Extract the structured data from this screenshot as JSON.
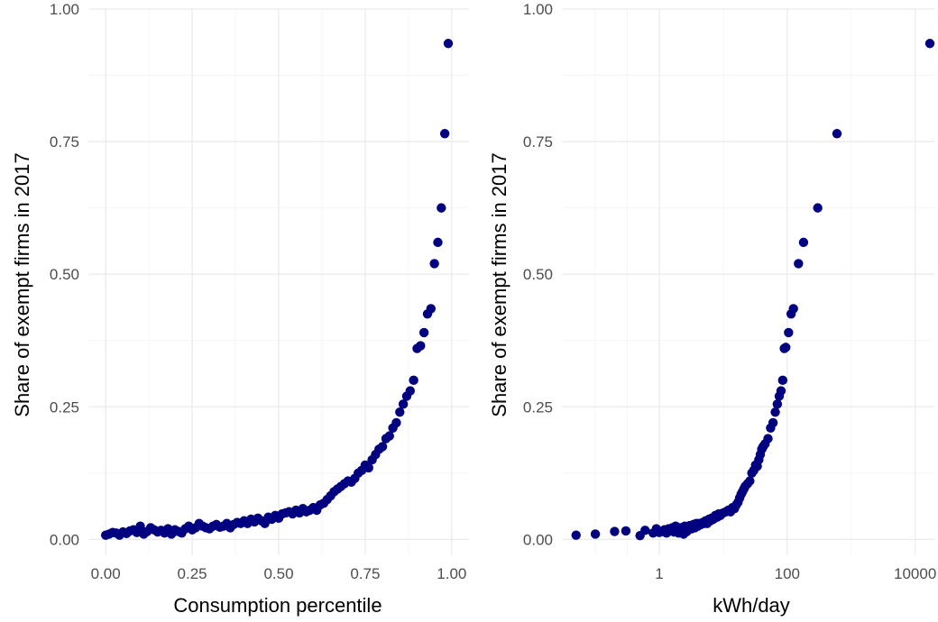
{
  "chart_data": [
    {
      "type": "scatter",
      "xlabel": "Consumption percentile",
      "ylabel": "Share of exempt firms in 2017",
      "xlim": [
        -0.05,
        1.05
      ],
      "ylim": [
        -0.03,
        1.0
      ],
      "x_scale": "linear",
      "x_ticks": [
        0,
        0.25,
        0.5,
        0.75,
        1.0
      ],
      "x_tick_labels": [
        "0.00",
        "0.25",
        "0.50",
        "0.75",
        "1.00"
      ],
      "y_ticks": [
        0,
        0.25,
        0.5,
        0.75,
        1.0
      ],
      "y_tick_labels": [
        "0.00",
        "0.25",
        "0.50",
        "0.75",
        "1.00"
      ],
      "grid": true,
      "marker_color": "#000080",
      "series": [
        {
          "points": [
            [
              0.0,
              0.008
            ],
            [
              0.01,
              0.01
            ],
            [
              0.02,
              0.013
            ],
            [
              0.03,
              0.012
            ],
            [
              0.04,
              0.008
            ],
            [
              0.05,
              0.014
            ],
            [
              0.06,
              0.011
            ],
            [
              0.07,
              0.016
            ],
            [
              0.08,
              0.018
            ],
            [
              0.09,
              0.013
            ],
            [
              0.1,
              0.025
            ],
            [
              0.11,
              0.01
            ],
            [
              0.12,
              0.015
            ],
            [
              0.13,
              0.022
            ],
            [
              0.14,
              0.018
            ],
            [
              0.15,
              0.014
            ],
            [
              0.16,
              0.017
            ],
            [
              0.17,
              0.012
            ],
            [
              0.18,
              0.02
            ],
            [
              0.19,
              0.01
            ],
            [
              0.2,
              0.018
            ],
            [
              0.21,
              0.015
            ],
            [
              0.22,
              0.012
            ],
            [
              0.23,
              0.02
            ],
            [
              0.24,
              0.025
            ],
            [
              0.25,
              0.018
            ],
            [
              0.26,
              0.022
            ],
            [
              0.27,
              0.03
            ],
            [
              0.28,
              0.025
            ],
            [
              0.29,
              0.022
            ],
            [
              0.3,
              0.02
            ],
            [
              0.31,
              0.025
            ],
            [
              0.32,
              0.028
            ],
            [
              0.33,
              0.023
            ],
            [
              0.34,
              0.025
            ],
            [
              0.35,
              0.03
            ],
            [
              0.36,
              0.022
            ],
            [
              0.37,
              0.028
            ],
            [
              0.38,
              0.032
            ],
            [
              0.39,
              0.03
            ],
            [
              0.4,
              0.035
            ],
            [
              0.41,
              0.03
            ],
            [
              0.42,
              0.038
            ],
            [
              0.43,
              0.033
            ],
            [
              0.44,
              0.04
            ],
            [
              0.45,
              0.035
            ],
            [
              0.46,
              0.03
            ],
            [
              0.47,
              0.042
            ],
            [
              0.48,
              0.038
            ],
            [
              0.49,
              0.045
            ],
            [
              0.5,
              0.04
            ],
            [
              0.51,
              0.048
            ],
            [
              0.52,
              0.05
            ],
            [
              0.53,
              0.052
            ],
            [
              0.54,
              0.048
            ],
            [
              0.55,
              0.055
            ],
            [
              0.56,
              0.05
            ],
            [
              0.57,
              0.058
            ],
            [
              0.58,
              0.052
            ],
            [
              0.59,
              0.055
            ],
            [
              0.6,
              0.06
            ],
            [
              0.61,
              0.055
            ],
            [
              0.62,
              0.065
            ],
            [
              0.63,
              0.068
            ],
            [
              0.64,
              0.075
            ],
            [
              0.65,
              0.082
            ],
            [
              0.66,
              0.09
            ],
            [
              0.67,
              0.095
            ],
            [
              0.68,
              0.1
            ],
            [
              0.69,
              0.105
            ],
            [
              0.7,
              0.11
            ],
            [
              0.71,
              0.108
            ],
            [
              0.72,
              0.115
            ],
            [
              0.73,
              0.125
            ],
            [
              0.74,
              0.13
            ],
            [
              0.75,
              0.14
            ],
            [
              0.76,
              0.135
            ],
            [
              0.77,
              0.15
            ],
            [
              0.78,
              0.16
            ],
            [
              0.79,
              0.17
            ],
            [
              0.8,
              0.175
            ],
            [
              0.81,
              0.19
            ],
            [
              0.82,
              0.195
            ],
            [
              0.83,
              0.21
            ],
            [
              0.84,
              0.22
            ],
            [
              0.85,
              0.24
            ],
            [
              0.86,
              0.255
            ],
            [
              0.87,
              0.27
            ],
            [
              0.88,
              0.28
            ],
            [
              0.89,
              0.3
            ],
            [
              0.9,
              0.36
            ],
            [
              0.91,
              0.365
            ],
            [
              0.92,
              0.39
            ],
            [
              0.93,
              0.425
            ],
            [
              0.94,
              0.435
            ],
            [
              0.95,
              0.52
            ],
            [
              0.96,
              0.56
            ],
            [
              0.97,
              0.625
            ],
            [
              0.98,
              0.765
            ],
            [
              0.99,
              0.935
            ]
          ]
        }
      ]
    },
    {
      "type": "scatter",
      "xlabel": "kWh/day",
      "ylabel": "Share of exempt firms in 2017",
      "x_scale": "log10",
      "xlim": [
        0.03,
        20000
      ],
      "ylim": [
        -0.03,
        1.0
      ],
      "x_ticks": [
        1,
        100,
        10000
      ],
      "x_tick_labels": [
        "1",
        "100",
        "10000"
      ],
      "y_ticks": [
        0,
        0.25,
        0.5,
        0.75,
        1.0
      ],
      "y_tick_labels": [
        "0.00",
        "0.25",
        "0.50",
        "0.75",
        "1.00"
      ],
      "grid": true,
      "marker_color": "#000080",
      "series": [
        {
          "points": [
            [
              0.05,
              0.008
            ],
            [
              0.1,
              0.01
            ],
            [
              0.2,
              0.015
            ],
            [
              0.3,
              0.016
            ],
            [
              0.5,
              0.007
            ],
            [
              0.6,
              0.017
            ],
            [
              0.8,
              0.012
            ],
            [
              0.9,
              0.02
            ],
            [
              1.0,
              0.013
            ],
            [
              1.1,
              0.015
            ],
            [
              1.2,
              0.018
            ],
            [
              1.3,
              0.012
            ],
            [
              1.4,
              0.02
            ],
            [
              1.5,
              0.016
            ],
            [
              1.6,
              0.022
            ],
            [
              1.7,
              0.014
            ],
            [
              1.8,
              0.025
            ],
            [
              1.9,
              0.018
            ],
            [
              2.0,
              0.012
            ],
            [
              2.1,
              0.022
            ],
            [
              2.2,
              0.015
            ],
            [
              2.3,
              0.02
            ],
            [
              2.4,
              0.01
            ],
            [
              2.5,
              0.025
            ],
            [
              2.6,
              0.018
            ],
            [
              2.7,
              0.015
            ],
            [
              2.8,
              0.022
            ],
            [
              3.0,
              0.026
            ],
            [
              3.2,
              0.02
            ],
            [
              3.4,
              0.028
            ],
            [
              3.6,
              0.022
            ],
            [
              3.8,
              0.03
            ],
            [
              4.0,
              0.025
            ],
            [
              4.2,
              0.03
            ],
            [
              4.5,
              0.028
            ],
            [
              4.8,
              0.032
            ],
            [
              5.0,
              0.03
            ],
            [
              5.3,
              0.035
            ],
            [
              5.6,
              0.03
            ],
            [
              6.0,
              0.038
            ],
            [
              6.3,
              0.035
            ],
            [
              6.6,
              0.04
            ],
            [
              7.0,
              0.038
            ],
            [
              7.5,
              0.045
            ],
            [
              8.0,
              0.042
            ],
            [
              8.5,
              0.048
            ],
            [
              9.0,
              0.045
            ],
            [
              10,
              0.05
            ],
            [
              11,
              0.052
            ],
            [
              12,
              0.055
            ],
            [
              13,
              0.052
            ],
            [
              14,
              0.06
            ],
            [
              15,
              0.058
            ],
            [
              16,
              0.065
            ],
            [
              17,
              0.07
            ],
            [
              18,
              0.078
            ],
            [
              19,
              0.085
            ],
            [
              20,
              0.09
            ],
            [
              21,
              0.095
            ],
            [
              22,
              0.1
            ],
            [
              24,
              0.105
            ],
            [
              26,
              0.11
            ],
            [
              28,
              0.125
            ],
            [
              30,
              0.13
            ],
            [
              32,
              0.14
            ],
            [
              34,
              0.138
            ],
            [
              36,
              0.15
            ],
            [
              38,
              0.16
            ],
            [
              40,
              0.17
            ],
            [
              42,
              0.175
            ],
            [
              45,
              0.18
            ],
            [
              50,
              0.19
            ],
            [
              55,
              0.21
            ],
            [
              60,
              0.22
            ],
            [
              65,
              0.24
            ],
            [
              70,
              0.255
            ],
            [
              75,
              0.27
            ],
            [
              80,
              0.28
            ],
            [
              85,
              0.3
            ],
            [
              90,
              0.36
            ],
            [
              95,
              0.362
            ],
            [
              105,
              0.39
            ],
            [
              115,
              0.425
            ],
            [
              125,
              0.435
            ],
            [
              150,
              0.52
            ],
            [
              180,
              0.56
            ],
            [
              300,
              0.625
            ],
            [
              600,
              0.765
            ],
            [
              17000,
              0.935
            ]
          ]
        }
      ]
    }
  ]
}
